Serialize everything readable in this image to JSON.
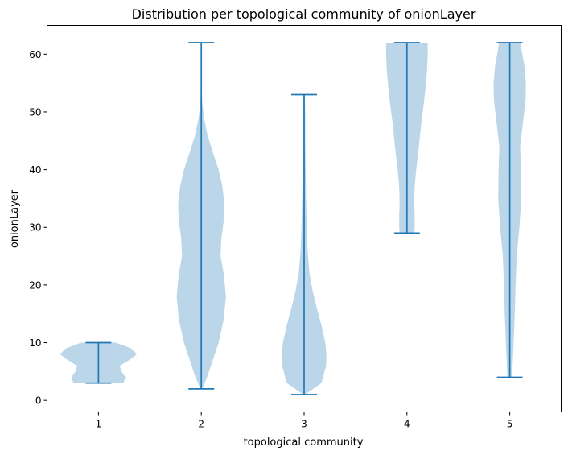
{
  "chart_data": {
    "type": "violin",
    "title": "Distribution per topological community of onionLayer",
    "xlabel": "topological community",
    "ylabel": "onionLayer",
    "categories": [
      "1",
      "2",
      "3",
      "4",
      "5"
    ],
    "ylim": [
      -2,
      65
    ],
    "yticks": [
      0,
      10,
      20,
      30,
      40,
      50,
      60
    ],
    "grid": false,
    "colors": {
      "body": "#1f77b4",
      "line": "#1f77b4"
    },
    "violins": [
      {
        "category": "1",
        "min": 3,
        "max": 10,
        "profile": [
          [
            3,
            0.65
          ],
          [
            4,
            0.7
          ],
          [
            5,
            0.6
          ],
          [
            6,
            0.55
          ],
          [
            7,
            0.8
          ],
          [
            8,
            1.0
          ],
          [
            9,
            0.85
          ],
          [
            10,
            0.45
          ]
        ]
      },
      {
        "category": "2",
        "min": 2,
        "max": 62,
        "profile": [
          [
            2,
            0.02
          ],
          [
            4,
            0.15
          ],
          [
            7,
            0.3
          ],
          [
            10,
            0.45
          ],
          [
            14,
            0.58
          ],
          [
            18,
            0.64
          ],
          [
            22,
            0.58
          ],
          [
            25,
            0.5
          ],
          [
            28,
            0.52
          ],
          [
            31,
            0.58
          ],
          [
            34,
            0.6
          ],
          [
            37,
            0.55
          ],
          [
            40,
            0.45
          ],
          [
            43,
            0.3
          ],
          [
            46,
            0.16
          ],
          [
            49,
            0.07
          ],
          [
            52,
            0.02
          ],
          [
            56,
            0.005
          ],
          [
            62,
            0.0
          ]
        ]
      },
      {
        "category": "3",
        "min": 1,
        "max": 53,
        "profile": [
          [
            1,
            0.02
          ],
          [
            3,
            0.45
          ],
          [
            6,
            0.57
          ],
          [
            8,
            0.58
          ],
          [
            10,
            0.55
          ],
          [
            13,
            0.45
          ],
          [
            16,
            0.33
          ],
          [
            19,
            0.22
          ],
          [
            22,
            0.14
          ],
          [
            26,
            0.09
          ],
          [
            30,
            0.07
          ],
          [
            35,
            0.05
          ],
          [
            40,
            0.04
          ],
          [
            45,
            0.03
          ],
          [
            50,
            0.03
          ],
          [
            53,
            0.02
          ]
        ]
      },
      {
        "category": "4",
        "min": 29,
        "max": 62,
        "profile": [
          [
            29,
            0.19
          ],
          [
            30,
            0.2
          ],
          [
            32,
            0.2
          ],
          [
            34,
            0.19
          ],
          [
            37,
            0.2
          ],
          [
            40,
            0.24
          ],
          [
            44,
            0.31
          ],
          [
            48,
            0.37
          ],
          [
            51,
            0.43
          ],
          [
            54,
            0.48
          ],
          [
            57,
            0.52
          ],
          [
            60,
            0.54
          ],
          [
            62,
            0.54
          ]
        ]
      },
      {
        "category": "5",
        "min": 4,
        "max": 62,
        "profile": [
          [
            4,
            0.06
          ],
          [
            7,
            0.08
          ],
          [
            10,
            0.1
          ],
          [
            15,
            0.13
          ],
          [
            20,
            0.15
          ],
          [
            25,
            0.18
          ],
          [
            30,
            0.25
          ],
          [
            35,
            0.3
          ],
          [
            40,
            0.29
          ],
          [
            44,
            0.27
          ],
          [
            48,
            0.34
          ],
          [
            52,
            0.41
          ],
          [
            55,
            0.42
          ],
          [
            58,
            0.38
          ],
          [
            61,
            0.3
          ],
          [
            62,
            0.28
          ]
        ]
      }
    ]
  }
}
